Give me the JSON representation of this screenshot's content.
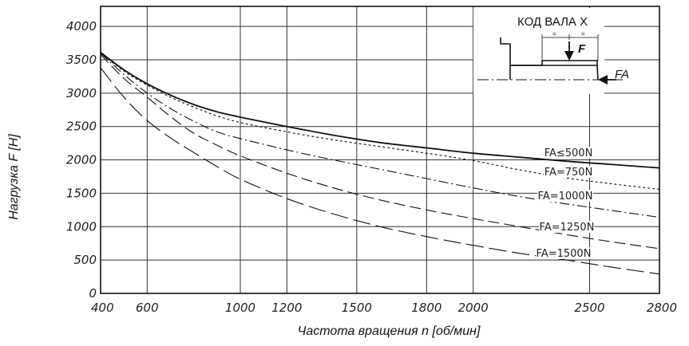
{
  "chart_data": {
    "type": "line",
    "title": "",
    "xlabel": "Частота вращения n [об/мин]",
    "ylabel": "Нагрузка F [Н]",
    "xlim": [
      400,
      2800
    ],
    "ylim": [
      0,
      4300
    ],
    "x_ticks": [
      400,
      600,
      1000,
      1200,
      1500,
      1800,
      2000,
      2500,
      2800
    ],
    "x_grid": [
      600,
      1000,
      1200,
      1500,
      1800,
      2000,
      2500,
      2800
    ],
    "y_ticks": [
      0,
      500,
      1000,
      1500,
      2000,
      2500,
      3000,
      3500,
      4000
    ],
    "grid": true,
    "series": [
      {
        "name": "FA≤500N",
        "style": "solid",
        "x": [
          400,
          500,
          600,
          700,
          800,
          900,
          1000,
          1200,
          1400,
          1600,
          1800,
          2000,
          2200,
          2400,
          2600,
          2800
        ],
        "y": [
          3610,
          3350,
          3140,
          2970,
          2830,
          2720,
          2640,
          2500,
          2370,
          2260,
          2180,
          2100,
          2040,
          1980,
          1930,
          1880
        ]
      },
      {
        "name": "FA=750N",
        "style": "dotted",
        "x": [
          400,
          500,
          600,
          700,
          800,
          900,
          1000,
          1200,
          1400,
          1600,
          1800,
          2000,
          2200,
          2400,
          2600,
          2800
        ],
        "y": [
          3600,
          3330,
          3120,
          2940,
          2790,
          2660,
          2560,
          2420,
          2300,
          2200,
          2100,
          1990,
          1850,
          1730,
          1640,
          1560
        ]
      },
      {
        "name": "FA=1000N",
        "style": "dashdot",
        "x": [
          400,
          500,
          600,
          700,
          800,
          900,
          1000,
          1200,
          1400,
          1600,
          1800,
          2000,
          2200,
          2400,
          2600,
          2800
        ],
        "y": [
          3600,
          3280,
          3000,
          2770,
          2580,
          2420,
          2320,
          2150,
          2000,
          1860,
          1720,
          1580,
          1450,
          1340,
          1240,
          1140
        ]
      },
      {
        "name": "FA=1250N",
        "style": "dashed",
        "x": [
          400,
          500,
          600,
          700,
          800,
          900,
          1000,
          1200,
          1400,
          1600,
          1800,
          2000,
          2200,
          2400,
          2600,
          2800
        ],
        "y": [
          3580,
          3220,
          2940,
          2650,
          2400,
          2220,
          2060,
          1800,
          1580,
          1400,
          1250,
          1120,
          1000,
          880,
          770,
          670
        ]
      },
      {
        "name": "FA=1500N",
        "style": "longdash",
        "x": [
          400,
          500,
          600,
          700,
          800,
          900,
          1000,
          1200,
          1400,
          1600,
          1800,
          2000,
          2200,
          2400,
          2600,
          2800
        ],
        "y": [
          3380,
          2940,
          2590,
          2330,
          2110,
          1900,
          1710,
          1420,
          1190,
          1000,
          850,
          720,
          600,
          500,
          390,
          290
        ]
      }
    ]
  },
  "inset": {
    "title": "КОД ВАЛА X",
    "force_label": "F",
    "axial_label": "FA",
    "dim_mark_1": "=",
    "dim_mark_2": "="
  }
}
